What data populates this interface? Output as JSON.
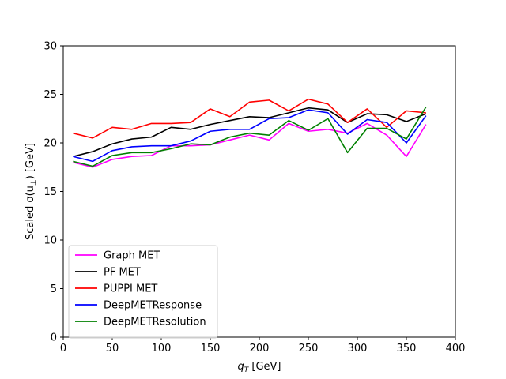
{
  "chart_data": {
    "type": "line",
    "xlabel_main": "q",
    "xlabel_sub": "T",
    "xlabel_unit": " [GeV]",
    "ylabel_pre": "Scaled σ(u",
    "ylabel_sub": "⊥",
    "ylabel_post": ") [GeV]",
    "xlim": [
      0,
      400
    ],
    "ylim": [
      0,
      30
    ],
    "xticks": [
      0,
      50,
      100,
      150,
      200,
      250,
      300,
      350,
      400
    ],
    "yticks": [
      0,
      5,
      10,
      15,
      20,
      25,
      30
    ],
    "grid": false,
    "legend_position": "lower-left",
    "x": [
      10,
      30,
      50,
      70,
      90,
      110,
      130,
      150,
      170,
      190,
      210,
      230,
      250,
      270,
      290,
      310,
      330,
      350,
      370
    ],
    "series": [
      {
        "name": "Graph MET",
        "color": "#ff00ff",
        "values": [
          18.0,
          17.5,
          18.3,
          18.6,
          18.7,
          19.7,
          19.7,
          19.8,
          20.3,
          20.8,
          20.3,
          22.0,
          21.2,
          21.4,
          21.0,
          22.0,
          20.8,
          18.6,
          21.9
        ]
      },
      {
        "name": "PF MET",
        "color": "#000000",
        "values": [
          18.6,
          19.1,
          19.9,
          20.4,
          20.6,
          21.6,
          21.4,
          21.9,
          22.3,
          22.7,
          22.6,
          23.1,
          23.6,
          23.4,
          22.1,
          23.0,
          22.9,
          22.2,
          23.0
        ]
      },
      {
        "name": "PUPPI MET",
        "color": "#ff0000",
        "values": [
          21.0,
          20.5,
          21.6,
          21.4,
          22.0,
          22.0,
          22.1,
          23.5,
          22.7,
          24.2,
          24.4,
          23.3,
          24.5,
          24.0,
          22.1,
          23.5,
          21.6,
          23.3,
          23.1
        ]
      },
      {
        "name": "DeepMETResponse",
        "color": "#0000ff",
        "values": [
          18.6,
          18.1,
          19.2,
          19.6,
          19.7,
          19.7,
          20.2,
          21.2,
          21.4,
          21.4,
          22.5,
          22.6,
          23.4,
          23.1,
          20.9,
          22.4,
          22.1,
          20.0,
          22.8
        ]
      },
      {
        "name": "DeepMETResolution",
        "color": "#008000",
        "values": [
          18.1,
          17.6,
          18.7,
          19.0,
          19.0,
          19.4,
          19.9,
          19.8,
          20.6,
          21.0,
          20.8,
          22.3,
          21.3,
          22.5,
          19.0,
          21.5,
          21.5,
          20.4,
          23.7
        ]
      }
    ]
  }
}
